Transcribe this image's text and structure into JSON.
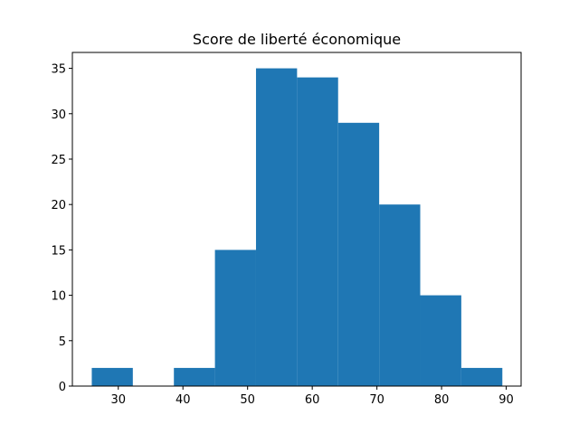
{
  "chart_data": {
    "type": "bar",
    "title": "Score de liberté économique",
    "xlabel": "",
    "ylabel": "",
    "xlim": [
      22.9,
      92.3
    ],
    "ylim": [
      0,
      36.75
    ],
    "grid": false,
    "bar_color": "#1f77b4",
    "bins": [
      {
        "start": 25.9,
        "end": 32.25,
        "count": 2
      },
      {
        "start": 32.25,
        "end": 38.6,
        "count": 0
      },
      {
        "start": 38.6,
        "end": 44.95,
        "count": 2
      },
      {
        "start": 44.95,
        "end": 51.3,
        "count": 15
      },
      {
        "start": 51.3,
        "end": 57.65,
        "count": 35
      },
      {
        "start": 57.65,
        "end": 64.0,
        "count": 34
      },
      {
        "start": 64.0,
        "end": 70.35,
        "count": 29
      },
      {
        "start": 70.35,
        "end": 76.7,
        "count": 20
      },
      {
        "start": 76.7,
        "end": 83.05,
        "count": 10
      },
      {
        "start": 83.05,
        "end": 89.4,
        "count": 2
      }
    ],
    "x_ticks": [
      30,
      40,
      50,
      60,
      70,
      80,
      90
    ],
    "y_ticks": [
      0,
      5,
      10,
      15,
      20,
      25,
      30,
      35
    ]
  }
}
